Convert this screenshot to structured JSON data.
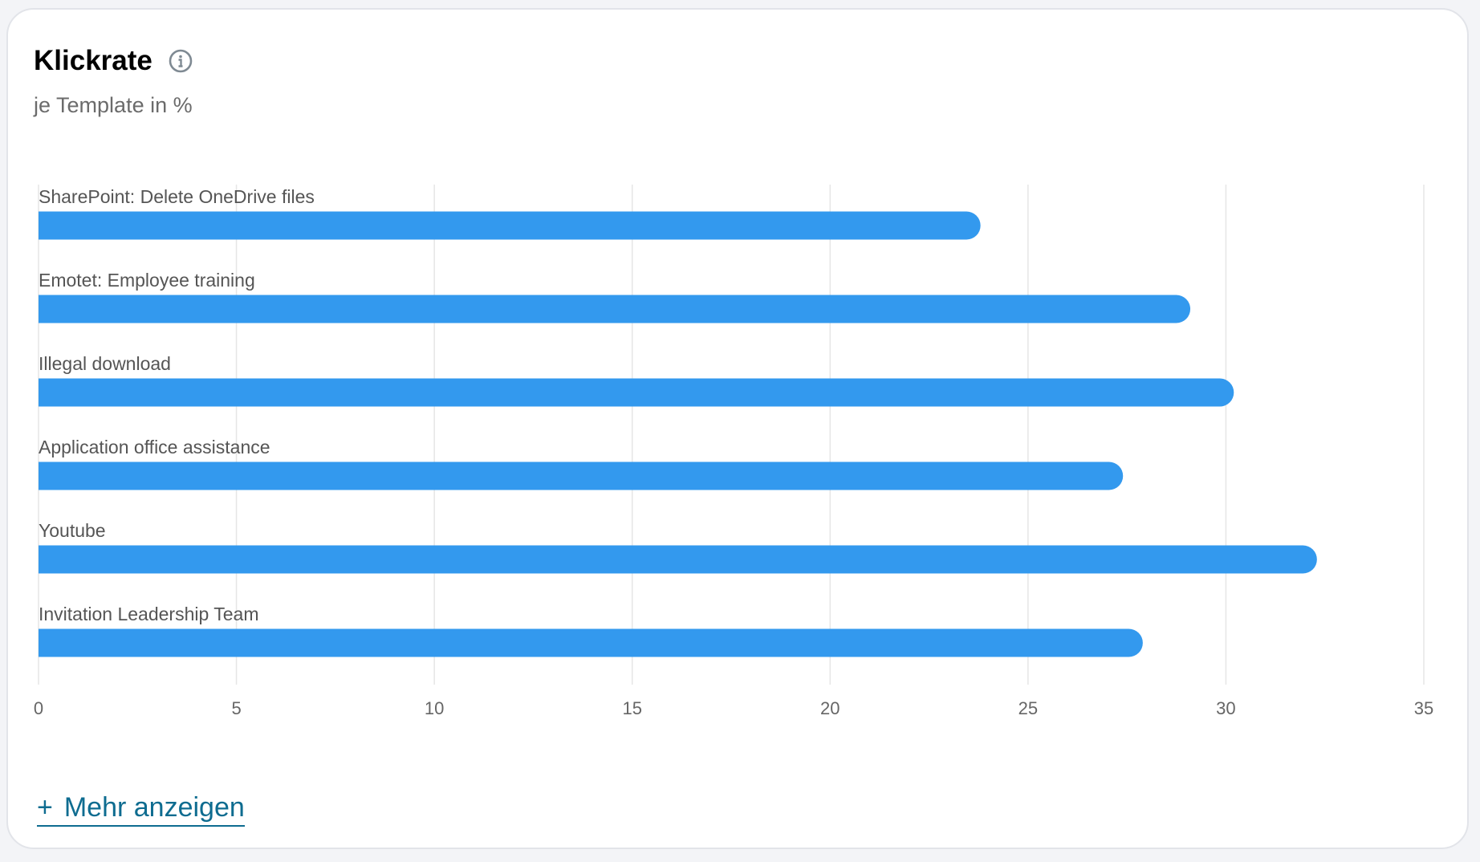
{
  "header": {
    "title": "Klickrate",
    "subtitle": "je Template in %",
    "info_icon": "info-circle-icon"
  },
  "footer": {
    "more_icon": "plus-icon",
    "more_plus": "+",
    "more_label": "Mehr anzeigen"
  },
  "colors": {
    "bar": "#3399ee",
    "grid": "#e6e6e6",
    "link": "#0e6c90"
  },
  "chart_data": {
    "type": "bar",
    "orientation": "horizontal",
    "categories": [
      "SharePoint: Delete OneDrive files",
      "Emotet: Employee training",
      "Illegal download",
      "Application office assistance",
      "Youtube",
      "Invitation Leadership Team"
    ],
    "values": [
      23.8,
      29.1,
      30.2,
      27.4,
      32.3,
      27.9
    ],
    "xlim": [
      0,
      35
    ],
    "xticks": [
      "0",
      "5",
      "10",
      "15",
      "20",
      "25",
      "30",
      "35"
    ],
    "grid": "vertical",
    "legend": "none"
  }
}
